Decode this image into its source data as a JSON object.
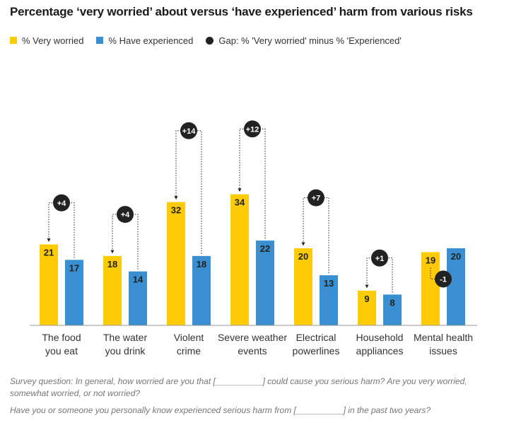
{
  "chart_data": {
    "type": "bar",
    "title": "Percentage ‘very worried’ about versus ‘have experienced’ harm from various risks",
    "categories": [
      [
        "The food",
        "you eat"
      ],
      [
        "The water",
        "you drink"
      ],
      [
        "Violent",
        "crime"
      ],
      [
        "Severe weather",
        "events"
      ],
      [
        "Electrical",
        "powerlines"
      ],
      [
        "Household",
        "appliances"
      ],
      [
        "Mental health",
        "issues"
      ]
    ],
    "series": [
      {
        "name": "% Very worried",
        "values": [
          21,
          18,
          32,
          34,
          20,
          9,
          19
        ],
        "color": "#FFCB05"
      },
      {
        "name": "% Have experienced",
        "values": [
          17,
          14,
          18,
          22,
          13,
          8,
          20
        ],
        "color": "#3A8FD0"
      }
    ],
    "gap": {
      "name": "Gap: % 'Very worried' minus % 'Experienced'",
      "labels": [
        "+4",
        "+4",
        "+14",
        "+12",
        "+7",
        "+1",
        "-1"
      ],
      "color": "#222222"
    },
    "ylim": [
      0,
      34
    ],
    "legend_position": "top-left",
    "grid": false
  },
  "footnotes": {
    "line1": "Survey question:  In general, how worried are you that [__________] could cause you serious harm? Are you very worried, somewhat worried, or not worried?",
    "line2": "Have you or someone you personally know experienced serious harm from  [__________] in the past two years?"
  }
}
